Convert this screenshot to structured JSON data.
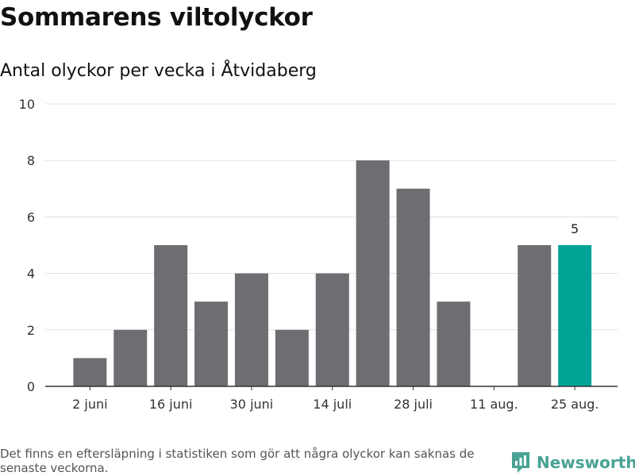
{
  "title": "Sommarens viltolyckor",
  "subtitle": "Antal olyckor per vecka i Åtvidaberg",
  "footnote": "Det finns en eftersläpning i statistiken som gör att några olyckor kan saknas de senaste veckorna.",
  "brand": {
    "name": "Newsworthy",
    "logo_icon": "newsworthy-logo-icon",
    "color": "#48a394"
  },
  "colors": {
    "bar": "#6e6d72",
    "highlight": "#00a497",
    "grid": "#e1e1e1",
    "axis": "#333333"
  },
  "chart_data": {
    "type": "bar",
    "x": [
      "2024-05-27",
      "2024-06-03",
      "2024-06-10",
      "2024-06-17",
      "2024-06-24",
      "2024-07-01",
      "2024-07-08",
      "2024-07-15",
      "2024-07-22",
      "2024-07-29",
      "2024-08-05",
      "2024-08-12",
      "2024-08-19",
      "2024-08-26"
    ],
    "values": [
      null,
      1,
      2,
      5,
      3,
      4,
      2,
      4,
      8,
      7,
      3,
      0,
      5,
      5
    ],
    "highlight_index": 13,
    "highlight_label": "5",
    "x_ticks": [
      {
        "x": "2024-06-03",
        "label": "2 juni"
      },
      {
        "x": "2024-06-17",
        "label": "16 juni"
      },
      {
        "x": "2024-07-01",
        "label": "30 juni"
      },
      {
        "x": "2024-07-15",
        "label": "14 juli"
      },
      {
        "x": "2024-07-29",
        "label": "28 juli"
      },
      {
        "x": "2024-08-12",
        "label": "11 aug."
      },
      {
        "x": "2024-08-26",
        "label": "25 aug."
      }
    ],
    "y_ticks": [
      0,
      2,
      4,
      6,
      8,
      10
    ],
    "ylim": [
      0,
      10
    ],
    "grid": true,
    "legend": "none"
  }
}
